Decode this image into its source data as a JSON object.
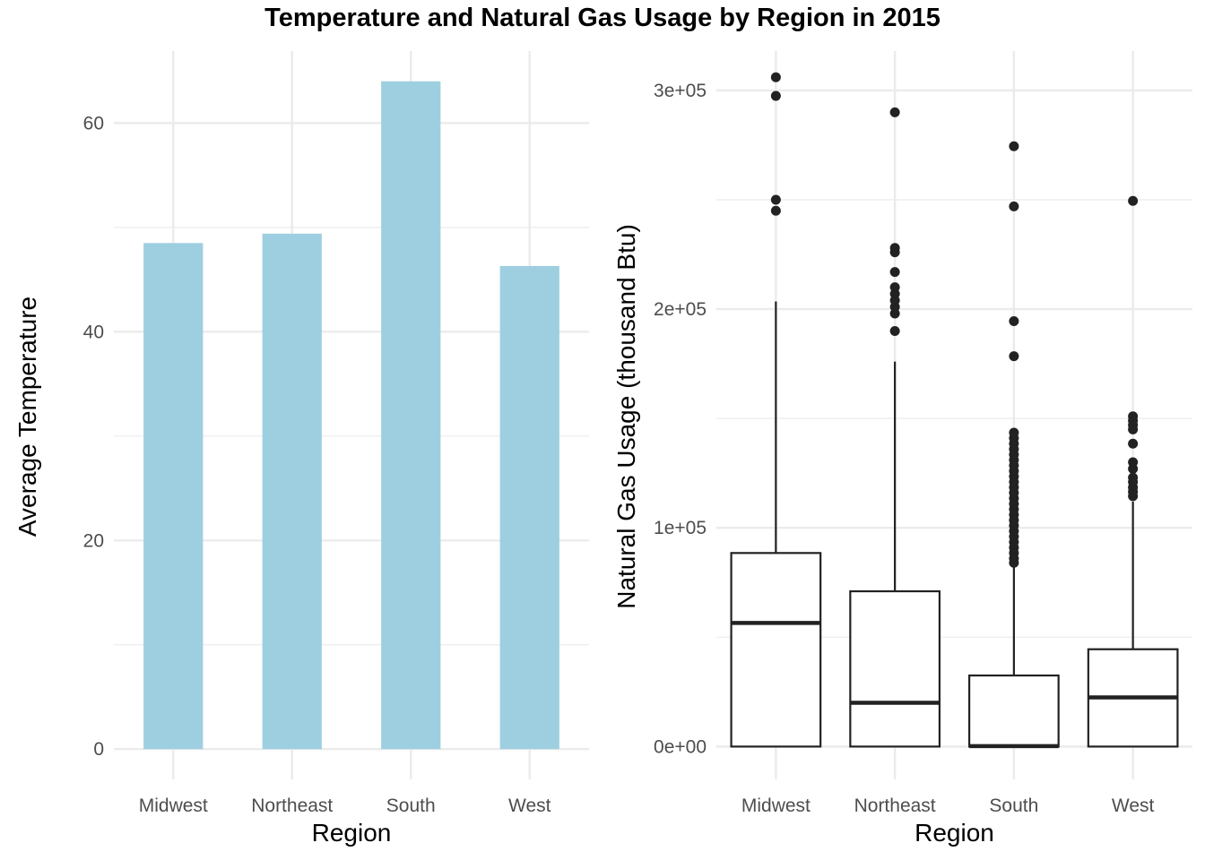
{
  "title": "Temperature and Natural Gas Usage by Region in 2015",
  "colors": {
    "bar_fill": "#9ecfe0",
    "grid": "#ebebeb",
    "box_stroke": "#222222",
    "point": "#222222"
  },
  "chart_data": [
    {
      "type": "bar",
      "categories": [
        "Midwest",
        "Northeast",
        "South",
        "West"
      ],
      "values": [
        48.5,
        49.4,
        64.0,
        46.3
      ],
      "xlabel": "Region",
      "ylabel": "Average Temperature",
      "ylim": [
        -2.9,
        66.9
      ],
      "yticks": [
        0,
        20,
        40,
        60
      ],
      "ytick_labels": [
        "0",
        "20",
        "40",
        "60"
      ],
      "grid": true,
      "legend": "none"
    },
    {
      "type": "box",
      "categories": [
        "Midwest",
        "Northeast",
        "South",
        "West"
      ],
      "xlabel": "Region",
      "ylabel": "Natural Gas Usage (thousand Btu)",
      "ylim": [
        -15000,
        318000
      ],
      "yticks": [
        0,
        100000,
        200000,
        300000
      ],
      "ytick_labels": [
        "0e+00",
        "1e+05",
        "2e+05",
        "3e+05"
      ],
      "grid": true,
      "legend": "none",
      "boxes": [
        {
          "name": "Midwest",
          "min": 0,
          "q1": 0,
          "median": 56500,
          "q3": 88500,
          "max": 203500,
          "outliers": [
            306000,
            297500,
            250000,
            245000
          ]
        },
        {
          "name": "Northeast",
          "min": 0,
          "q1": 0,
          "median": 20000,
          "q3": 71000,
          "max": 176000,
          "outliers": [
            290000,
            228000,
            226000,
            217000,
            210000,
            207000,
            204000,
            201000,
            198000,
            190000
          ]
        },
        {
          "name": "South",
          "min": 0,
          "q1": 0,
          "median": 200,
          "q3": 32500,
          "max": 82000,
          "outliers": [
            274500,
            247000,
            194500,
            178500,
            143500,
            141000,
            138500,
            136000,
            133500,
            131000,
            128500,
            126000,
            123500,
            121000,
            118500,
            116000,
            113500,
            111000,
            108500,
            106000,
            103500,
            101000,
            98500,
            96000,
            93500,
            91000,
            88500,
            86000,
            84000
          ]
        },
        {
          "name": "West",
          "min": 0,
          "q1": 0,
          "median": 22500,
          "q3": 44500,
          "max": 112000,
          "outliers": [
            249500,
            151000,
            149000,
            147000,
            145000,
            138500,
            130000,
            127000,
            123000,
            121000,
            118500,
            116500,
            114500
          ]
        }
      ]
    }
  ]
}
